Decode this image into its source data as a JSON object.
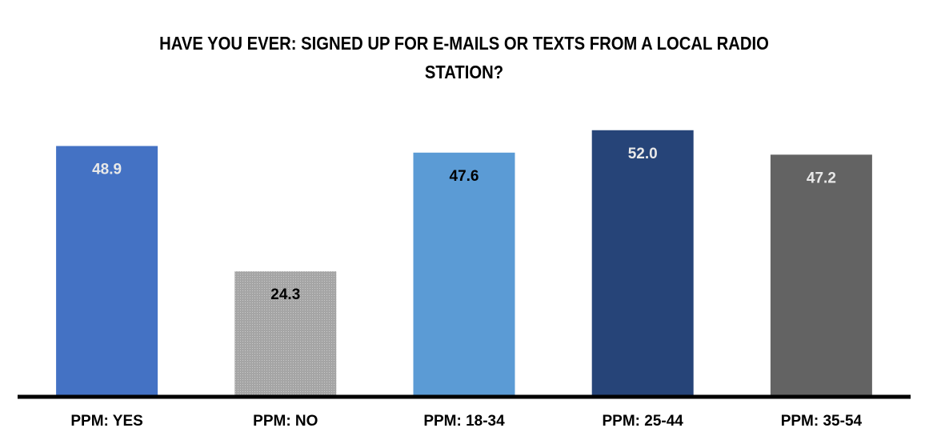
{
  "chart_data": {
    "type": "bar",
    "title": "HAVE YOU EVER: SIGNED UP FOR E-MAILS OR TEXTS FROM A LOCAL RADIO STATION?",
    "categories": [
      "PPM: YES",
      "PPM: NO",
      "PPM: 18-34",
      "PPM: 25-44",
      "PPM: 35-54"
    ],
    "values": [
      48.9,
      24.3,
      47.6,
      52.0,
      47.2
    ],
    "value_labels": [
      "48.9",
      "24.3",
      "47.6",
      "52.0",
      "47.2"
    ],
    "colors": [
      "#4472c4",
      "#a5a5a5",
      "#5b9bd5",
      "#264478",
      "#636363"
    ]
  }
}
